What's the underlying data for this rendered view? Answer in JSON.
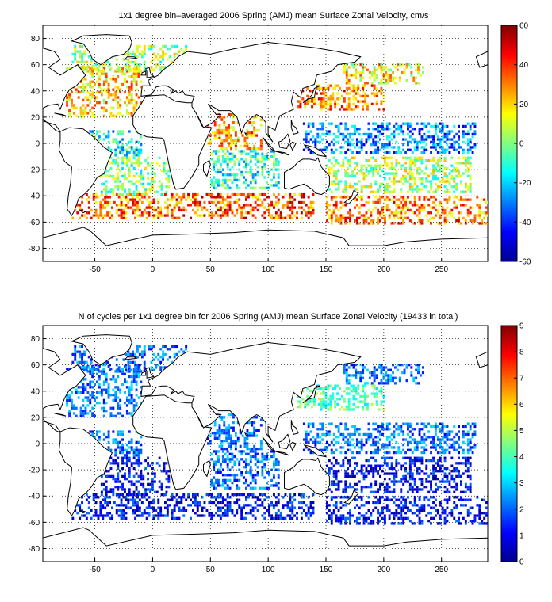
{
  "chart_data": [
    {
      "type": "heatmap",
      "title": "1x1 degree bin–averaged 2006 Spring (AMJ) mean Surface Zonal Velocity, cm/s",
      "xlabel": "",
      "ylabel": "",
      "xlim": [
        -95,
        290
      ],
      "ylim": [
        -90,
        90
      ],
      "xticks": [
        -50,
        0,
        50,
        100,
        150,
        200,
        250
      ],
      "yticks": [
        -80,
        -60,
        -40,
        -20,
        0,
        20,
        40,
        60,
        80
      ],
      "grid": true,
      "colorbar": {
        "min": -60,
        "max": 60,
        "ticks": [
          60,
          40,
          20,
          0,
          -20,
          -40,
          -60
        ],
        "colormap": "jet"
      },
      "regions": [
        {
          "lon": [
            -75,
            -10
          ],
          "lat": [
            20,
            60
          ],
          "value": 20
        },
        {
          "lon": [
            -70,
            30
          ],
          "lat": [
            55,
            75
          ],
          "value": 5
        },
        {
          "lon": [
            -55,
            -10
          ],
          "lat": [
            -10,
            10
          ],
          "value": -15
        },
        {
          "lon": [
            -45,
            15
          ],
          "lat": [
            -40,
            -10
          ],
          "value": 0
        },
        {
          "lon": [
            -70,
            20
          ],
          "lat": [
            -58,
            -38
          ],
          "value": 30
        },
        {
          "lon": [
            45,
            95
          ],
          "lat": [
            -5,
            22
          ],
          "value": 25
        },
        {
          "lon": [
            50,
            110
          ],
          "lat": [
            -35,
            -5
          ],
          "value": -10
        },
        {
          "lon": [
            20,
            140
          ],
          "lat": [
            -58,
            -38
          ],
          "value": 35
        },
        {
          "lon": [
            125,
            200
          ],
          "lat": [
            25,
            45
          ],
          "value": 30
        },
        {
          "lon": [
            130,
            280
          ],
          "lat": [
            -8,
            15
          ],
          "value": -30
        },
        {
          "lon": [
            150,
            275
          ],
          "lat": [
            -38,
            -10
          ],
          "value": 5
        },
        {
          "lon": [
            150,
            290
          ],
          "lat": [
            -62,
            -40
          ],
          "value": 30
        },
        {
          "lon": [
            165,
            235
          ],
          "lat": [
            45,
            60
          ],
          "value": 15
        }
      ]
    },
    {
      "type": "heatmap",
      "title": "N of cycles per 1x1 degree bin for 2006 Spring (AMJ) mean Surface Zonal Velocity (19433 in total)",
      "xlabel": "",
      "ylabel": "",
      "xlim": [
        -95,
        290
      ],
      "ylim": [
        -90,
        90
      ],
      "xticks": [
        -50,
        0,
        50,
        100,
        150,
        200,
        250
      ],
      "yticks": [
        -80,
        -60,
        -40,
        -20,
        0,
        20,
        40,
        60,
        80
      ],
      "grid": true,
      "colorbar": {
        "min": 0,
        "max": 9,
        "ticks": [
          9,
          8,
          7,
          6,
          5,
          4,
          3,
          2,
          1,
          0
        ],
        "colormap": "jet"
      },
      "total_cycles": 19433,
      "regions": [
        {
          "lon": [
            -75,
            -10
          ],
          "lat": [
            20,
            60
          ],
          "value": 2
        },
        {
          "lon": [
            -70,
            30
          ],
          "lat": [
            55,
            75
          ],
          "value": 2
        },
        {
          "lon": [
            -55,
            -10
          ],
          "lat": [
            -10,
            10
          ],
          "value": 2
        },
        {
          "lon": [
            -45,
            15
          ],
          "lat": [
            -40,
            -10
          ],
          "value": 1
        },
        {
          "lon": [
            -70,
            20
          ],
          "lat": [
            -58,
            -38
          ],
          "value": 1
        },
        {
          "lon": [
            45,
            95
          ],
          "lat": [
            -5,
            22
          ],
          "value": 2
        },
        {
          "lon": [
            50,
            110
          ],
          "lat": [
            -35,
            -5
          ],
          "value": 2
        },
        {
          "lon": [
            20,
            140
          ],
          "lat": [
            -58,
            -38
          ],
          "value": 1
        },
        {
          "lon": [
            125,
            200
          ],
          "lat": [
            25,
            45
          ],
          "value": 4
        },
        {
          "lon": [
            130,
            280
          ],
          "lat": [
            -8,
            15
          ],
          "value": 2
        },
        {
          "lon": [
            150,
            275
          ],
          "lat": [
            -38,
            -10
          ],
          "value": 1
        },
        {
          "lon": [
            150,
            290
          ],
          "lat": [
            -62,
            -40
          ],
          "value": 1
        },
        {
          "lon": [
            165,
            235
          ],
          "lat": [
            45,
            60
          ],
          "value": 2
        }
      ]
    }
  ]
}
